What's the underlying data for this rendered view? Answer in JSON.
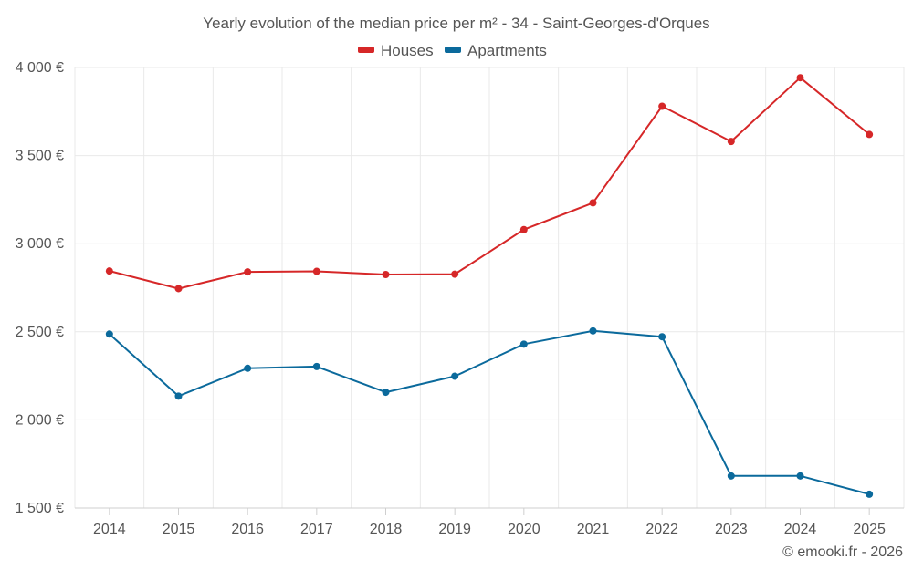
{
  "chart_data": {
    "type": "line",
    "title": "Yearly evolution of the median price per m² - 34 - Saint-Georges-d'Orques",
    "categories": [
      "2014",
      "2015",
      "2016",
      "2017",
      "2018",
      "2019",
      "2020",
      "2021",
      "2022",
      "2023",
      "2024",
      "2025"
    ],
    "series": [
      {
        "name": "Houses",
        "color": "#d62728",
        "values": [
          2845,
          2745,
          2840,
          2843,
          2825,
          2827,
          3080,
          3232,
          3780,
          3580,
          3942,
          3620
        ]
      },
      {
        "name": "Apartments",
        "color": "#0b6a9c",
        "values": [
          2487,
          2135,
          2293,
          2303,
          2157,
          2248,
          2430,
          2505,
          2472,
          1682,
          1682,
          1578
        ]
      }
    ],
    "ylim": [
      1500,
      4000
    ],
    "yticks": [
      1500,
      2000,
      2500,
      3000,
      3500,
      4000
    ],
    "ytick_labels": [
      "1 500 €",
      "2 000 €",
      "2 500 €",
      "3 000 €",
      "3 500 €",
      "4 000 €"
    ],
    "grid": true,
    "legend_position": "top-center",
    "xlabel": "",
    "ylabel": ""
  },
  "credit": "© emooki.fr - 2026"
}
